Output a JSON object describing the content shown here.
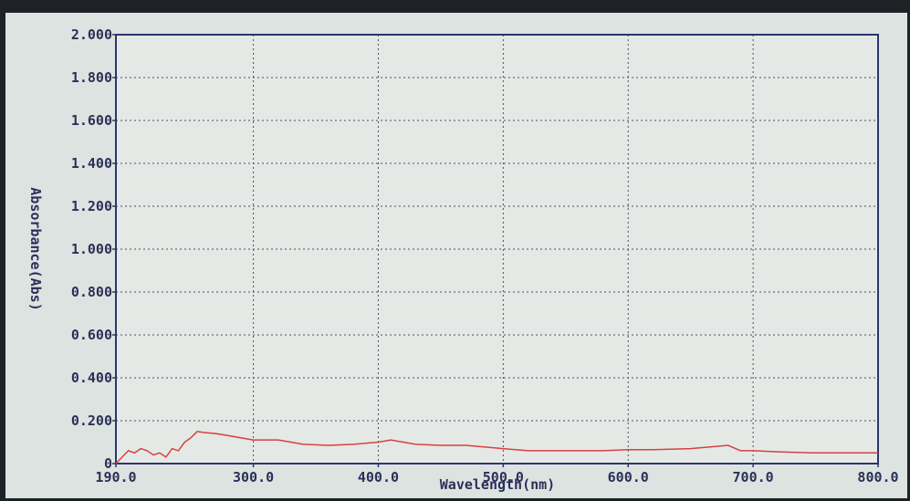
{
  "chart_data": {
    "type": "line",
    "xlabel": "Wavelength(nm)",
    "ylabel": "Absorbance(Abs)",
    "color": "#d9403e",
    "grid": true,
    "x": [
      190,
      195,
      200,
      205,
      210,
      215,
      220,
      225,
      230,
      235,
      240,
      245,
      250,
      255,
      260,
      270,
      280,
      300,
      320,
      340,
      360,
      380,
      400,
      410,
      420,
      430,
      450,
      470,
      500,
      520,
      550,
      580,
      600,
      620,
      650,
      670,
      680,
      690,
      700,
      720,
      750,
      780,
      800
    ],
    "values": [
      0.0,
      0.03,
      0.06,
      0.05,
      0.07,
      0.06,
      0.04,
      0.05,
      0.03,
      0.07,
      0.06,
      0.1,
      0.12,
      0.15,
      0.145,
      0.14,
      0.13,
      0.11,
      0.11,
      0.09,
      0.085,
      0.09,
      0.1,
      0.11,
      0.1,
      0.09,
      0.085,
      0.085,
      0.07,
      0.06,
      0.06,
      0.06,
      0.065,
      0.065,
      0.07,
      0.08,
      0.085,
      0.06,
      0.06,
      0.055,
      0.05,
      0.05,
      0.05
    ],
    "xlim": [
      190,
      800
    ],
    "xticks": [
      {
        "value": 190,
        "label": "190.0"
      },
      {
        "value": 300,
        "label": "300.0"
      },
      {
        "value": 400,
        "label": "400.0"
      },
      {
        "value": 500,
        "label": "500.0"
      },
      {
        "value": 600,
        "label": "600.0"
      },
      {
        "value": 700,
        "label": "700.0"
      },
      {
        "value": 800,
        "label": "800.0"
      }
    ],
    "ylim": [
      0,
      2
    ],
    "yticks": [
      0,
      {
        "value": 0.2,
        "label": "0.200"
      },
      {
        "value": 0.4,
        "label": "0.400"
      },
      {
        "value": 0.6,
        "label": "0.600"
      },
      {
        "value": 0.8,
        "label": "0.800"
      },
      {
        "value": 1.0,
        "label": "1.000"
      },
      {
        "value": 1.2,
        "label": "1.200"
      },
      {
        "value": 1.4,
        "label": "1.400"
      },
      {
        "value": 1.6,
        "label": "1.600"
      },
      {
        "value": 1.8,
        "label": "1.800"
      },
      {
        "value": 2.0,
        "label": "2.000"
      }
    ]
  }
}
